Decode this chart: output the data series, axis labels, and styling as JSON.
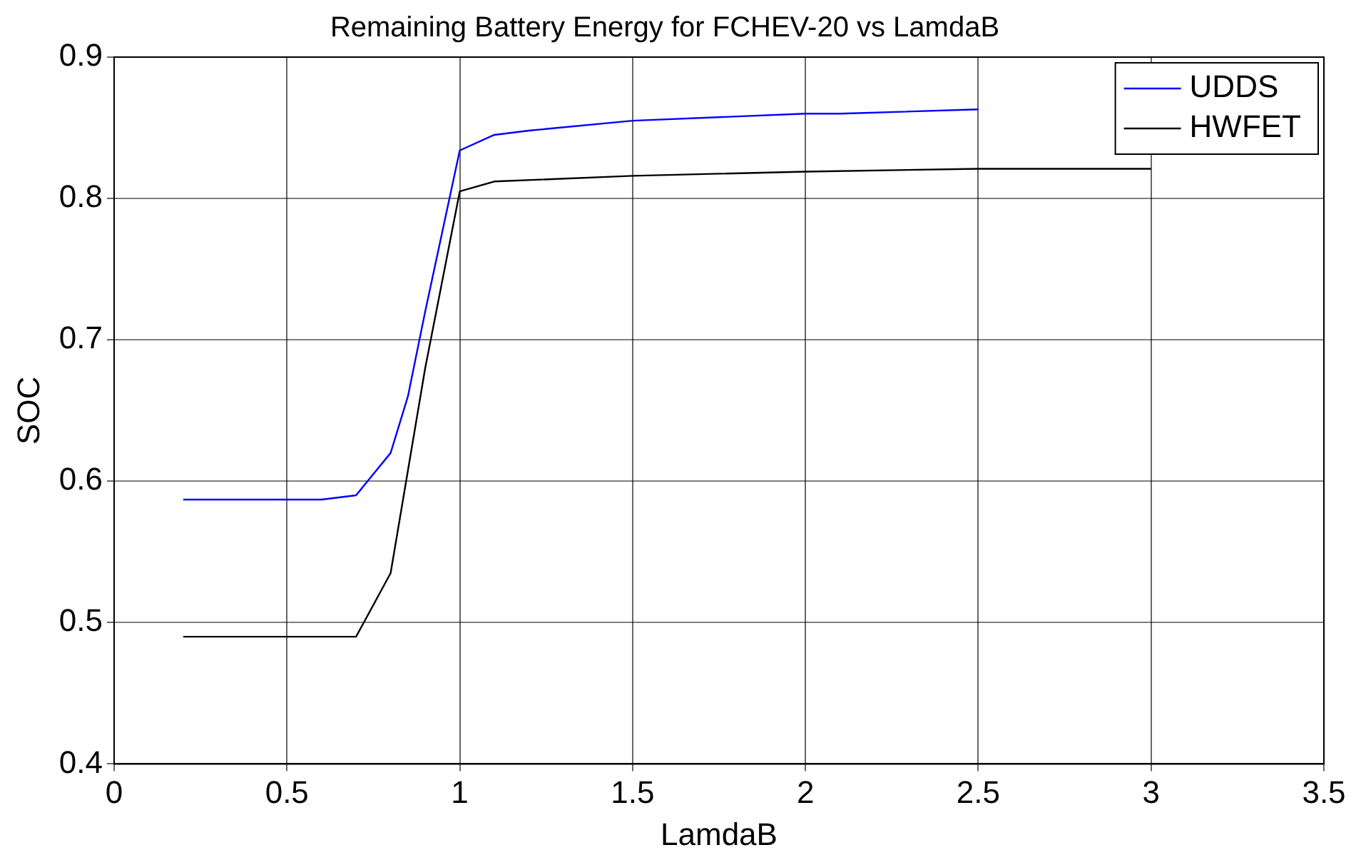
{
  "chart_data": {
    "type": "line",
    "title": "Remaining Battery Energy for FCHEV-20 vs LamdaB",
    "xlabel": "LamdaB",
    "ylabel": "SOC",
    "xlim": [
      0,
      3.5
    ],
    "xticks": [
      0,
      0.5,
      1,
      1.5,
      2,
      2.5,
      3,
      3.5
    ],
    "ylim": [
      0.4,
      0.9
    ],
    "yticks": [
      0.4,
      0.5,
      0.6,
      0.7,
      0.8,
      0.9
    ],
    "grid": true,
    "legend": "top right",
    "marker": "none",
    "line_style": "solid",
    "series": [
      {
        "name": "UDDS",
        "color": "#0000ff",
        "x": [
          0.2,
          0.6,
          0.7,
          0.8,
          0.85,
          0.9,
          1.0,
          1.1,
          1.2,
          1.5,
          2.0,
          2.1,
          2.5
        ],
        "values": [
          0.587,
          0.587,
          0.59,
          0.62,
          0.66,
          0.72,
          0.834,
          0.845,
          0.848,
          0.855,
          0.86,
          0.86,
          0.863
        ]
      },
      {
        "name": "HWFET",
        "color": "#000000",
        "x": [
          0.2,
          0.7,
          0.8,
          0.9,
          1.0,
          1.1,
          1.5,
          2.0,
          2.5,
          3.0
        ],
        "values": [
          0.49,
          0.49,
          0.535,
          0.68,
          0.805,
          0.812,
          0.816,
          0.819,
          0.821,
          0.821
        ]
      }
    ]
  }
}
